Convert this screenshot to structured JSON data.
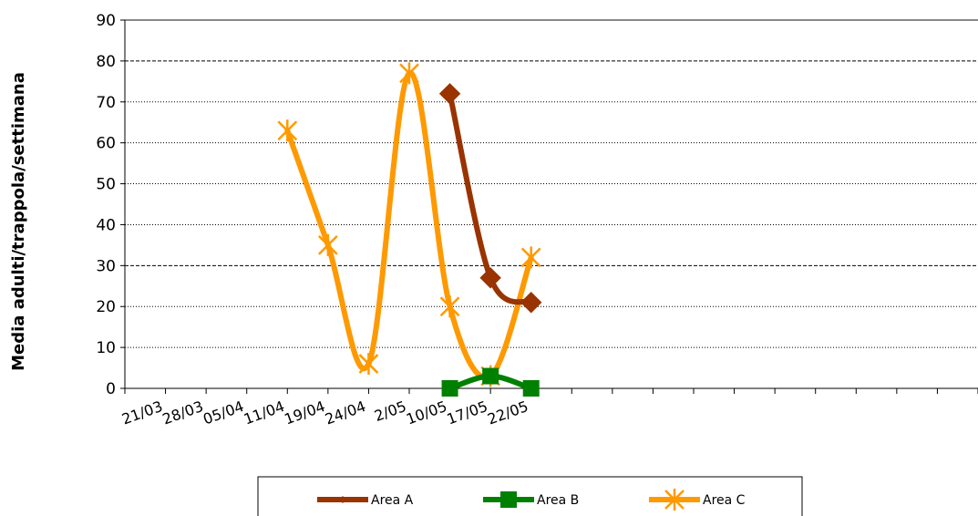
{
  "chart_data": {
    "type": "line",
    "title": "",
    "xlabel": "",
    "ylabel": "Media adulti/trappola/settimana",
    "ylim": [
      0,
      90
    ],
    "yticks": [
      "0",
      "10",
      "20",
      "30",
      "40",
      "50",
      "60",
      "70",
      "80",
      "90"
    ],
    "categories": [
      "21/03",
      "28/03",
      "05/04",
      "11/04",
      "19/04",
      "24/04",
      "2/05",
      "10/05",
      "17/05",
      "22/05"
    ],
    "grid": "dashed horizontal at 30 and 80, dotted elsewhere",
    "legend_position": "bottom",
    "series": [
      {
        "name": "Area A",
        "color": "#993300",
        "marker": "diamond",
        "points": [
          {
            "category": "10/05",
            "value": 72
          },
          {
            "category": "17/05",
            "value": 27
          },
          {
            "category": "22/05",
            "value": 21
          }
        ]
      },
      {
        "name": "Area B",
        "color": "#008000",
        "marker": "square",
        "points": [
          {
            "category": "10/05",
            "value": 0
          },
          {
            "category": "17/05",
            "value": 3
          },
          {
            "category": "22/05",
            "value": 0
          }
        ]
      },
      {
        "name": "Area C",
        "color": "#FF9900",
        "marker": "star",
        "points": [
          {
            "category": "11/04",
            "value": 63
          },
          {
            "category": "19/04",
            "value": 35
          },
          {
            "category": "24/04",
            "value": 6
          },
          {
            "category": "2/05",
            "value": 77
          },
          {
            "category": "10/05",
            "value": 20
          },
          {
            "category": "17/05",
            "value": 3
          },
          {
            "category": "22/05",
            "value": 32
          }
        ]
      }
    ]
  }
}
